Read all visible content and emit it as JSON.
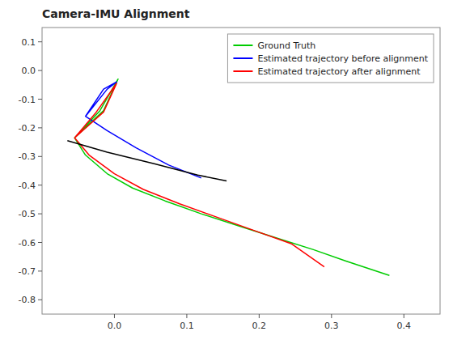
{
  "chart_data": {
    "type": "line",
    "title": "Camera-IMU Alignment",
    "series": [
      {
        "name": "Ground Truth",
        "color": "#00cc00",
        "x": [
          -0.055,
          -0.02,
          0.005,
          -0.015,
          -0.055,
          -0.04,
          -0.01,
          0.025,
          0.07,
          0.12,
          0.175,
          0.225,
          0.275,
          0.32,
          0.38
        ],
        "values": [
          -0.235,
          -0.14,
          -0.03,
          -0.14,
          -0.235,
          -0.295,
          -0.36,
          -0.41,
          -0.455,
          -0.5,
          -0.545,
          -0.585,
          -0.625,
          -0.665,
          -0.715
        ]
      },
      {
        "name": "Estimated trajectory before alignment",
        "color": "#0000ff",
        "x": [
          -0.04,
          -0.015,
          0.003,
          -0.01,
          -0.04,
          -0.01,
          0.03,
          0.075,
          0.12
        ],
        "values": [
          -0.16,
          -0.065,
          -0.04,
          -0.065,
          -0.16,
          -0.21,
          -0.27,
          -0.33,
          -0.375
        ]
      },
      {
        "name": "Estimated trajectory after alignment",
        "color": "#ff0000",
        "x": [
          -0.055,
          -0.025,
          0.003,
          -0.015,
          -0.055,
          -0.035,
          0.0,
          0.04,
          0.09,
          0.145,
          0.195,
          0.245,
          0.29
        ],
        "values": [
          -0.235,
          -0.145,
          -0.045,
          -0.145,
          -0.235,
          -0.295,
          -0.36,
          -0.415,
          -0.465,
          -0.515,
          -0.56,
          -0.605,
          -0.685
        ]
      },
      {
        "color": "#000000",
        "x": [
          -0.065,
          -0.01,
          0.055,
          0.115,
          0.155
        ],
        "values": [
          -0.245,
          -0.285,
          -0.325,
          -0.365,
          -0.385
        ]
      }
    ],
    "xlim": [
      -0.1,
      0.45
    ],
    "ylim": [
      -0.85,
      0.15
    ],
    "xticks": [
      {
        "value": 0.0,
        "label": "0.0"
      },
      0.1,
      0.2,
      0.3,
      0.4
    ],
    "yticks": [
      0.1,
      {
        "value": 0.0,
        "label": "0.0"
      },
      -0.1,
      -0.2,
      -0.3,
      -0.4,
      -0.5,
      -0.6,
      -0.7,
      -0.8
    ],
    "grid": false,
    "legend": "upper right"
  }
}
